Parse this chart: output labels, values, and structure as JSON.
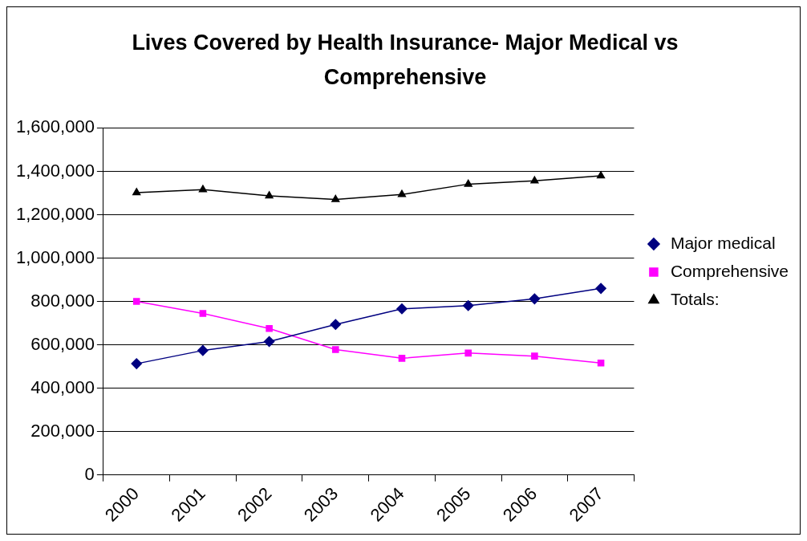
{
  "chart_data": {
    "type": "line",
    "title": "Lives Covered by Health Insurance- Major Medical vs Comprehensive",
    "categories": [
      "2000",
      "2001",
      "2002",
      "2003",
      "2004",
      "2005",
      "2006",
      "2007"
    ],
    "series": [
      {
        "name": "Major medical",
        "color": "#000080",
        "marker": "diamond",
        "values": [
          513000,
          574000,
          615000,
          694000,
          766000,
          781000,
          812000,
          860000
        ]
      },
      {
        "name": "Comprehensive",
        "color": "#ff00ff",
        "marker": "square",
        "values": [
          800000,
          745000,
          675000,
          578000,
          538000,
          562000,
          548000,
          516000
        ]
      },
      {
        "name": "Totals:",
        "color": "#000000",
        "marker": "triangle",
        "values": [
          1302000,
          1316000,
          1287000,
          1270000,
          1293000,
          1341000,
          1356000,
          1379000
        ]
      }
    ],
    "ylim": [
      0,
      1600000
    ],
    "yticks": [
      {
        "value": 0,
        "label": "0"
      },
      {
        "value": 200000,
        "label": "200,000"
      },
      {
        "value": 400000,
        "label": "400,000"
      },
      {
        "value": 600000,
        "label": "600,000"
      },
      {
        "value": 800000,
        "label": "800,000"
      },
      {
        "value": 1000000,
        "label": "1,000,000"
      },
      {
        "value": 1200000,
        "label": "1,200,000"
      },
      {
        "value": 1400000,
        "label": "1,400,000"
      },
      {
        "value": 1600000,
        "label": "1,600,000"
      }
    ],
    "grid": "y",
    "legend": "right",
    "line_style": "solid"
  }
}
